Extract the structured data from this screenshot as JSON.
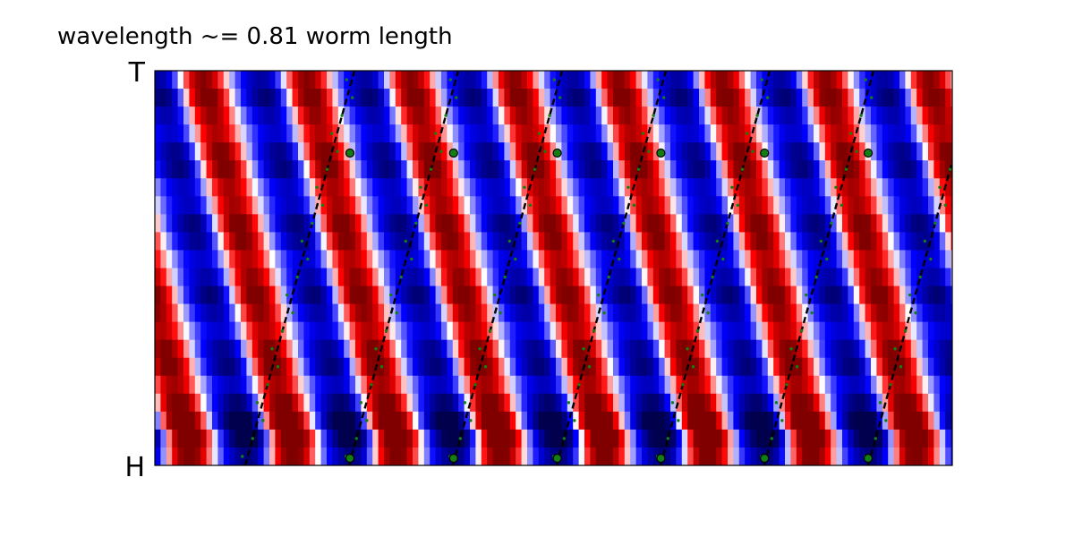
{
  "chart_data": {
    "type": "heatmap",
    "title": "wavelength ~= 0.81 worm length",
    "y_tick_labels": {
      "top": "T",
      "bottom": "H"
    },
    "x_ticks_visible": false,
    "grid": false,
    "legend": "none",
    "colormap": "seismic",
    "colors": {
      "negative": "#0000ff",
      "zero": "#ffffff",
      "positive": "#ff0000",
      "line": "#000000",
      "marker": "#137f13"
    },
    "wave": {
      "wavelength_worm_lengths": 0.81,
      "num_rows": 22,
      "sample_period_columns": 6.4
    },
    "fit_lines": {
      "count": 7
    },
    "markers": {
      "count": 12
    }
  }
}
